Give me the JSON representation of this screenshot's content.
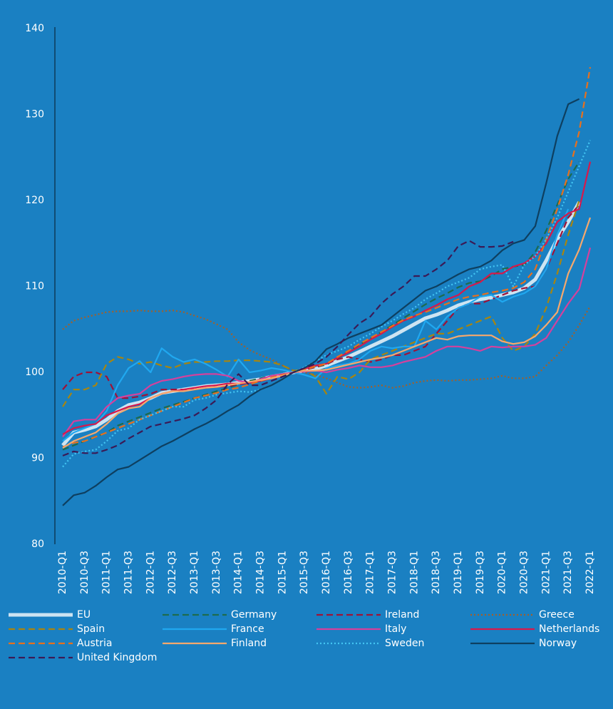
{
  "chart_data": {
    "type": "line",
    "background": "#1a80c2",
    "categories": [
      "2010-Q1",
      null,
      "2010-Q3",
      null,
      "2011-Q1",
      null,
      "2011-Q3",
      null,
      "2012-Q1",
      null,
      "2012-Q3",
      null,
      "2013-Q1",
      null,
      "2013-Q3",
      null,
      "2014-Q1",
      null,
      "2014-Q3",
      null,
      "2015-Q1",
      null,
      "2015-Q3",
      null,
      "2016-Q1",
      null,
      "2016-Q3",
      null,
      "2017-Q1",
      null,
      "2017-Q3",
      null,
      "2018-Q1",
      null,
      "2018-Q3",
      null,
      "2019-Q1",
      null,
      "2019-Q3",
      null,
      "2020-Q1",
      null,
      "2020-Q3",
      null,
      "2021-Q1",
      null,
      "2021-Q3",
      null,
      "2022-Q1"
    ],
    "ylim": [
      80,
      140
    ],
    "yticks": [
      80,
      90,
      100,
      110,
      120,
      130,
      140
    ],
    "grid": false,
    "series": [
      {
        "name": "EU",
        "color": "#cde4f2",
        "style": "solid",
        "values": [
          91.5,
          93,
          93.3,
          93.7,
          94.5,
          95.5,
          96.2,
          96.5,
          97,
          97.6,
          97.8,
          98,
          98.2,
          98.4,
          98.5,
          98.6,
          98.8,
          99,
          99.2,
          99.5,
          99.7,
          100,
          100.2,
          100.4,
          100.8,
          101.3,
          101.8,
          102.4,
          103,
          103.6,
          104.2,
          104.9,
          105.6,
          106.3,
          106.7,
          107.2,
          107.8,
          108.2,
          108.5,
          108.7,
          109,
          109.3,
          109.8,
          110.8,
          113,
          115.5,
          117.5,
          119.8,
          null
        ]
      },
      {
        "name": "Germany",
        "color": "#1d6b4e",
        "style": "dashed",
        "values": [
          91,
          91.5,
          92,
          92.5,
          93,
          93.8,
          94.3,
          94.8,
          95.3,
          95.8,
          96.2,
          96.6,
          97,
          97.4,
          97.8,
          98.2,
          98.6,
          99,
          99.3,
          99.6,
          99.8,
          100,
          100.3,
          100.6,
          100.9,
          101.6,
          102.4,
          103.2,
          103.9,
          104.7,
          105.5,
          106.3,
          107.1,
          107.9,
          108.6,
          109.2,
          109.9,
          110.4,
          110.6,
          111.2,
          112,
          112.3,
          112.5,
          114,
          116.5,
          119.5,
          122.5,
          124.5,
          null
        ]
      },
      {
        "name": "Ireland",
        "color": "#9e1238",
        "style": "dashed",
        "values": [
          98,
          99.5,
          100,
          100,
          99.5,
          97,
          97,
          97.2,
          97.5,
          98,
          98,
          98,
          98,
          98.2,
          98.3,
          98.4,
          98.6,
          98.8,
          99,
          99.3,
          99.6,
          100,
          100.3,
          100.6,
          101,
          101.5,
          101.8,
          101.5,
          101.2,
          101.5,
          102,
          102,
          102.5,
          103,
          104.5,
          106,
          107.5,
          108,
          108,
          108.5,
          109,
          109.5,
          109.8,
          110,
          112,
          115,
          118,
          119.5,
          null
        ]
      },
      {
        "name": "Greece",
        "color": "#a0602c",
        "style": "dotted",
        "values": [
          105,
          106,
          106.4,
          106.7,
          107,
          107.1,
          107.1,
          107.2,
          107.1,
          107.1,
          107.2,
          107,
          106.6,
          106.2,
          105.6,
          105,
          103.5,
          102.6,
          102,
          101.5,
          100.8,
          100.2,
          100,
          99.7,
          99.3,
          98.8,
          98.3,
          98.2,
          98.3,
          98.5,
          98.2,
          98.4,
          98.8,
          99,
          99.1,
          99,
          99.1,
          99.1,
          99.2,
          99.3,
          99.6,
          99.3,
          99.3,
          99.5,
          100.8,
          102,
          103.5,
          105.5,
          107.7
        ]
      },
      {
        "name": "Spain",
        "color": "#a8850f",
        "style": "dashed",
        "values": [
          96,
          98,
          98,
          98.5,
          101,
          101.8,
          101.5,
          101,
          101.2,
          100.8,
          100.5,
          101,
          101.2,
          101.2,
          101.3,
          101.3,
          101.4,
          101.4,
          101.3,
          101.2,
          100.8,
          100.2,
          100.3,
          99.5,
          97.5,
          99.5,
          99.2,
          100,
          101.5,
          102,
          102.5,
          103,
          103.5,
          104,
          104.5,
          104.5,
          105,
          105.5,
          106,
          106.5,
          104,
          102.5,
          103,
          104.5,
          107.5,
          111.5,
          116,
          120,
          null
        ]
      },
      {
        "name": "France",
        "color": "#20a8f0",
        "style": "solid",
        "values": [
          92,
          93,
          93.5,
          94,
          95.5,
          98.5,
          100.5,
          101.3,
          100,
          102.8,
          101.8,
          101.2,
          101.5,
          101,
          100.3,
          99.5,
          101.5,
          100,
          100.2,
          100.5,
          100.3,
          100,
          99.7,
          99.3,
          100.5,
          100.8,
          101,
          101.5,
          102.5,
          103,
          102.8,
          103,
          103,
          106,
          105,
          106.5,
          107.5,
          108,
          108.8,
          109,
          108.2,
          108.8,
          109.2,
          110,
          112,
          116,
          119,
          null,
          null
        ]
      },
      {
        "name": "Italy",
        "color": "#d6409c",
        "style": "solid",
        "values": [
          92.5,
          94.3,
          94.5,
          94.5,
          96,
          97,
          97.3,
          97.5,
          98.5,
          99,
          99.2,
          99.5,
          99.7,
          99.8,
          99.8,
          99.6,
          99,
          98.8,
          99.2,
          99.6,
          99.8,
          100,
          100.1,
          100.2,
          100,
          100.3,
          100.5,
          100.8,
          100.6,
          100.6,
          100.8,
          101.2,
          101.5,
          101.8,
          102.5,
          103,
          103,
          102.8,
          102.5,
          103,
          102.9,
          103,
          103,
          103.2,
          104,
          106,
          108,
          109.7,
          114.5
        ]
      },
      {
        "name": "Netherlands",
        "color": "#d8184b",
        "style": "solid",
        "values": [
          92.8,
          93.5,
          93.8,
          94,
          95,
          95.5,
          96,
          96.3,
          97,
          97.5,
          97.8,
          98,
          98.2,
          98.4,
          98.5,
          98.7,
          98.7,
          98.8,
          99,
          99.3,
          99.6,
          100,
          100.4,
          100.8,
          101,
          101.7,
          102.3,
          103,
          103.8,
          104.5,
          105.3,
          106,
          106.5,
          107.2,
          107.8,
          108.5,
          109,
          110,
          110.5,
          111.5,
          111.5,
          112.3,
          112.7,
          113.5,
          115,
          117.5,
          118.5,
          119,
          124.5
        ]
      },
      {
        "name": "Austria",
        "color": "#e8701c",
        "style": "dashed",
        "values": [
          91.3,
          91.8,
          92,
          92.5,
          93,
          93.5,
          94,
          94.5,
          95,
          95.5,
          96,
          96.5,
          97,
          97.3,
          97.6,
          98,
          98.2,
          98.6,
          99,
          99.4,
          99.7,
          100,
          100.3,
          100.7,
          101,
          101.8,
          102.5,
          103.3,
          104,
          104.7,
          105.4,
          106.1,
          106.6,
          107,
          107.5,
          108,
          108.5,
          108.8,
          109,
          109.3,
          109.5,
          109.8,
          110.5,
          112,
          115.5,
          119,
          123,
          128,
          135.5
        ]
      },
      {
        "name": "Finland",
        "color": "#f7a86c",
        "style": "solid",
        "values": [
          91.2,
          92,
          92.5,
          93,
          94,
          95.2,
          95.8,
          96,
          97,
          97.5,
          97.8,
          97.8,
          98,
          98.2,
          98.3,
          98.5,
          98.7,
          98.9,
          99.1,
          99.3,
          99.6,
          100,
          100.2,
          100.2,
          100.3,
          100.6,
          100.9,
          101.2,
          101.5,
          101.7,
          102,
          102.5,
          103,
          103.5,
          104,
          103.8,
          104.2,
          104.3,
          104.3,
          104.3,
          103.6,
          103.3,
          103.5,
          104.2,
          105.5,
          107,
          111.5,
          114.3,
          118
        ]
      },
      {
        "name": "Sweden",
        "color": "#42c4f2",
        "style": "dotted",
        "values": [
          89,
          90.5,
          90.8,
          91,
          92,
          93.2,
          93.5,
          94.5,
          95,
          95.5,
          96,
          96,
          96.8,
          97,
          97.4,
          97.6,
          97.8,
          97.7,
          98,
          98.5,
          99.2,
          100,
          100.6,
          101.3,
          102,
          102.5,
          103,
          103.8,
          104.5,
          105.3,
          106,
          106.8,
          107.5,
          108.5,
          109.2,
          110,
          110.5,
          111,
          112,
          112.3,
          112.5,
          110,
          112.5,
          113.5,
          115.5,
          118,
          121,
          124,
          127
        ]
      },
      {
        "name": "Norway",
        "color": "#0e3f60",
        "style": "solid",
        "values": [
          84.5,
          85.7,
          86,
          86.8,
          87.8,
          88.7,
          89,
          89.8,
          90.6,
          91.4,
          92,
          92.7,
          93.4,
          94,
          94.7,
          95.5,
          96.2,
          97.2,
          98,
          98.5,
          99.2,
          100,
          100.5,
          101.3,
          102.7,
          103.3,
          104,
          104.5,
          105,
          105.5,
          106.5,
          107.5,
          108.5,
          109.5,
          110,
          110.7,
          111.4,
          112,
          112.3,
          113,
          114.2,
          115,
          115.4,
          117,
          122,
          127.5,
          131.2,
          131.8,
          null
        ]
      },
      {
        "name": "United Kingdom",
        "color": "#3b1a56",
        "style": "dashed",
        "values": [
          90.3,
          90.8,
          90.6,
          90.6,
          91,
          91.5,
          92.3,
          93,
          93.7,
          94,
          94.3,
          94.6,
          95,
          95.8,
          96.8,
          98.6,
          99.8,
          98.5,
          98.5,
          99,
          99.5,
          100,
          100.5,
          101,
          101.8,
          103,
          104.4,
          105.7,
          106.5,
          108,
          109.1,
          110,
          111.2,
          111.2,
          112,
          113,
          114.7,
          115.3,
          114.6,
          114.6,
          114.7,
          115.2,
          null,
          null,
          null,
          null,
          null,
          null,
          null
        ]
      }
    ]
  }
}
